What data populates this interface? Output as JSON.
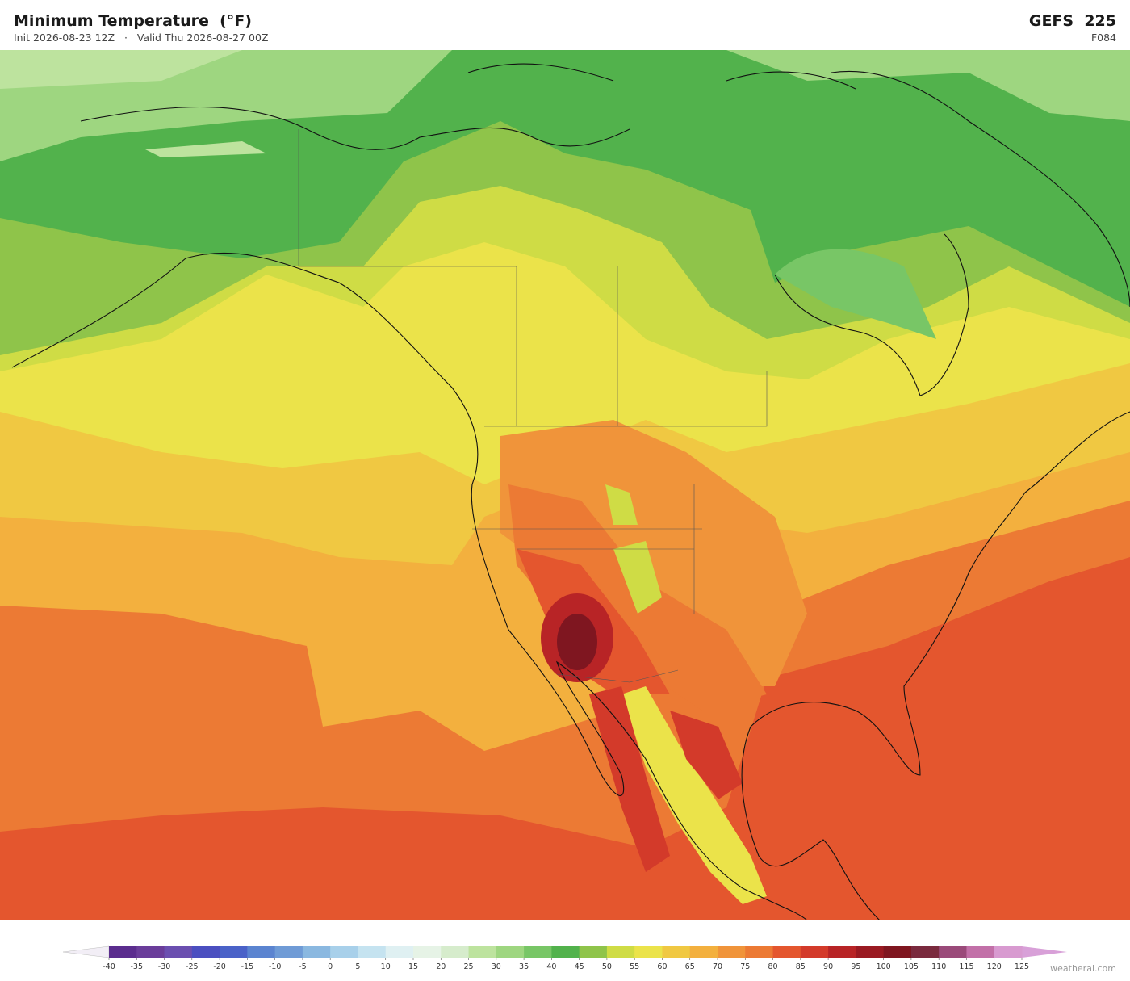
{
  "header": {
    "title": "Minimum Temperature  (°F)",
    "subtitle": "Init 2026-08-23 12Z   ·   Valid Thu 2026-08-27 00Z",
    "model": "GEFS  225",
    "forecast_hour": "F084"
  },
  "colorbar": {
    "ticks": [
      -40,
      -35,
      -30,
      -25,
      -20,
      -15,
      -10,
      -5,
      0,
      5,
      10,
      15,
      20,
      25,
      30,
      35,
      40,
      45,
      50,
      55,
      60,
      65,
      70,
      75,
      80,
      85,
      90,
      95,
      100,
      105,
      110,
      115,
      120,
      125
    ],
    "colors": [
      "#5b2d8e",
      "#6a3d9a",
      "#6b4fb0",
      "#4b4fc0",
      "#4a62c8",
      "#5b84d0",
      "#6f9bd6",
      "#8ab8e0",
      "#a8d0ea",
      "#c5e3f0",
      "#dff0f2",
      "#e6f3e6",
      "#d6eccc",
      "#bde39e",
      "#9ed680",
      "#78c666",
      "#52b24c",
      "#8fc44a",
      "#cfdc45",
      "#ebe34a",
      "#f0c842",
      "#f3b03e",
      "#f0943a",
      "#ec7a34",
      "#e4562e",
      "#d33a2a",
      "#b82426",
      "#9a1a22",
      "#7f1620",
      "#7a2a3e",
      "#9a4a7a",
      "#c270a8",
      "#d89ad0"
    ],
    "under_color": "#f2eef6",
    "over_color": "#d8a0d8"
  },
  "watermark": "weatherai.com"
}
